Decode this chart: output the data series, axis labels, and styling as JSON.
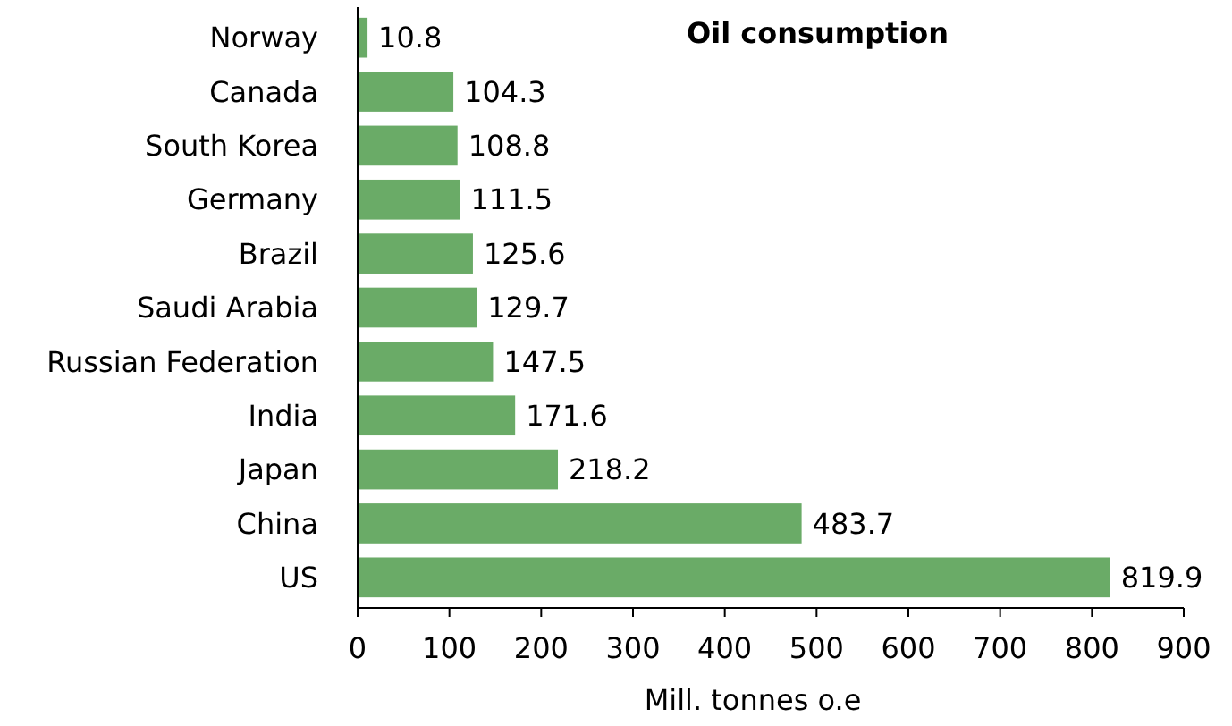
{
  "chart_data": {
    "type": "bar",
    "orientation": "horizontal",
    "title": "Oil consumption",
    "xlabel": "Mill. tonnes o.e",
    "categories": [
      "Norway",
      "Canada",
      "South Korea",
      "Germany",
      "Brazil",
      "Saudi Arabia",
      "Russian Federation",
      "India",
      "Japan",
      "China",
      "US"
    ],
    "values": [
      10.8,
      104.3,
      108.8,
      111.5,
      125.6,
      129.7,
      147.5,
      171.6,
      218.2,
      483.7,
      819.9
    ],
    "color": "#6aab67",
    "xlim": [
      0,
      900
    ],
    "xticks": [
      0,
      100,
      200,
      300,
      400,
      500,
      600,
      700,
      800,
      900
    ],
    "data_labels": true,
    "grid": false
  }
}
